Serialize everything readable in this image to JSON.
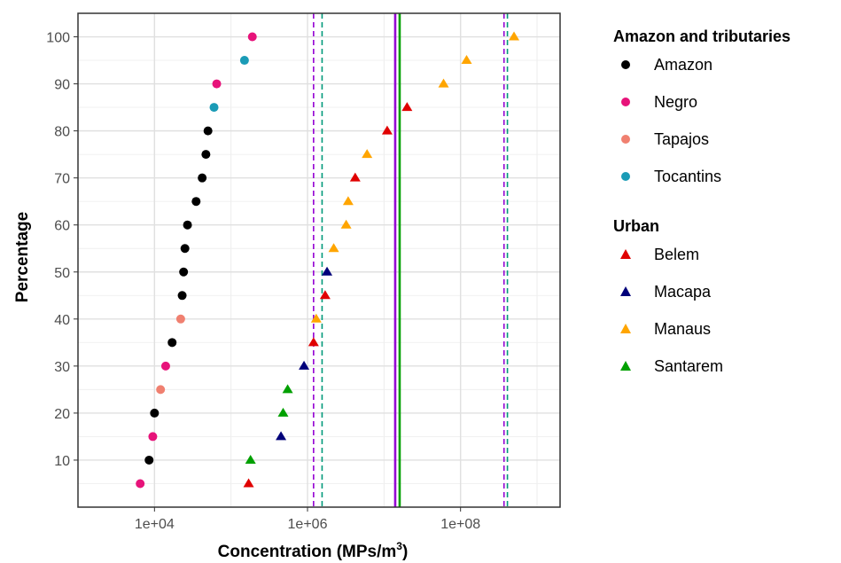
{
  "chart_data": {
    "type": "scatter",
    "xlabel_main": "Concentration (MPs/m",
    "xlabel_sup": "3",
    "xlabel_end": ")",
    "ylabel": "Percentage",
    "x_scale": "log10",
    "xlim": [
      1000,
      2000000000
    ],
    "ylim": [
      0,
      105
    ],
    "x_ticks": [
      10000,
      1000000,
      100000000
    ],
    "x_tick_labels": [
      "1e+04",
      "1e+06",
      "1e+08"
    ],
    "y_ticks": [
      10,
      20,
      30,
      40,
      50,
      60,
      70,
      80,
      90,
      100
    ],
    "grid": true,
    "legend_position": "right",
    "legend": {
      "groups": [
        {
          "title": "Amazon and tributaries",
          "shape": "circle",
          "items": [
            {
              "label": "Amazon",
              "color": "#000000"
            },
            {
              "label": "Negro",
              "color": "#e7137a"
            },
            {
              "label": "Tapajos",
              "color": "#f08070"
            },
            {
              "label": "Tocantins",
              "color": "#1a9bb6"
            }
          ]
        },
        {
          "title": "Urban",
          "shape": "triangle",
          "items": [
            {
              "label": "Belem",
              "color": "#e00000"
            },
            {
              "label": "Macapa",
              "color": "#00007a"
            },
            {
              "label": "Manaus",
              "color": "#ffa500"
            },
            {
              "label": "Santarem",
              "color": "#00a000"
            }
          ]
        }
      ]
    },
    "series": [
      {
        "name": "Amazon",
        "shape": "circle",
        "color": "#000000",
        "points": [
          [
            8500,
            10
          ],
          [
            10000,
            20
          ],
          [
            17000,
            35
          ],
          [
            23000,
            45
          ],
          [
            24000,
            50
          ],
          [
            25000,
            55
          ],
          [
            27000,
            60
          ],
          [
            35000,
            65
          ],
          [
            42000,
            70
          ],
          [
            47000,
            75
          ],
          [
            50000,
            80
          ]
        ]
      },
      {
        "name": "Negro",
        "shape": "circle",
        "color": "#e7137a",
        "points": [
          [
            6500,
            5
          ],
          [
            9500,
            15
          ],
          [
            14000,
            30
          ],
          [
            65000,
            90
          ],
          [
            190000,
            100
          ]
        ]
      },
      {
        "name": "Tapajos",
        "shape": "circle",
        "color": "#f08070",
        "points": [
          [
            12000,
            25
          ],
          [
            22000,
            40
          ]
        ]
      },
      {
        "name": "Tocantins",
        "shape": "circle",
        "color": "#1a9bb6",
        "points": [
          [
            60000,
            85
          ],
          [
            150000,
            95
          ]
        ]
      },
      {
        "name": "Belem",
        "shape": "triangle",
        "color": "#e00000",
        "points": [
          [
            170000,
            5
          ],
          [
            1200000,
            35
          ],
          [
            1700000,
            45
          ],
          [
            4200000,
            70
          ],
          [
            11000000,
            80
          ],
          [
            20000000,
            85
          ]
        ]
      },
      {
        "name": "Macapa",
        "shape": "triangle",
        "color": "#00007a",
        "points": [
          [
            450000,
            15
          ],
          [
            900000,
            30
          ],
          [
            1800000,
            50
          ]
        ]
      },
      {
        "name": "Manaus",
        "shape": "triangle",
        "color": "#ffa500",
        "points": [
          [
            1300000,
            40
          ],
          [
            2200000,
            55
          ],
          [
            3200000,
            60
          ],
          [
            3400000,
            65
          ],
          [
            6000000,
            75
          ],
          [
            60000000,
            90
          ],
          [
            120000000,
            95
          ],
          [
            500000000,
            100
          ]
        ]
      },
      {
        "name": "Santarem",
        "shape": "triangle",
        "color": "#00a000",
        "points": [
          [
            180000,
            10
          ],
          [
            480000,
            20
          ],
          [
            550000,
            25
          ]
        ]
      }
    ],
    "reference_lines": [
      {
        "x": 1200000,
        "color": "#9400d3",
        "style": "dashed"
      },
      {
        "x": 1550000,
        "color": "#009a7a",
        "style": "dashed"
      },
      {
        "x": 14000000,
        "color": "#9400d3",
        "style": "solid"
      },
      {
        "x": 16000000,
        "color": "#00a000",
        "style": "solid"
      },
      {
        "x": 370000000,
        "color": "#9400d3",
        "style": "dashed"
      },
      {
        "x": 410000000,
        "color": "#009a7a",
        "style": "dashed"
      }
    ]
  }
}
